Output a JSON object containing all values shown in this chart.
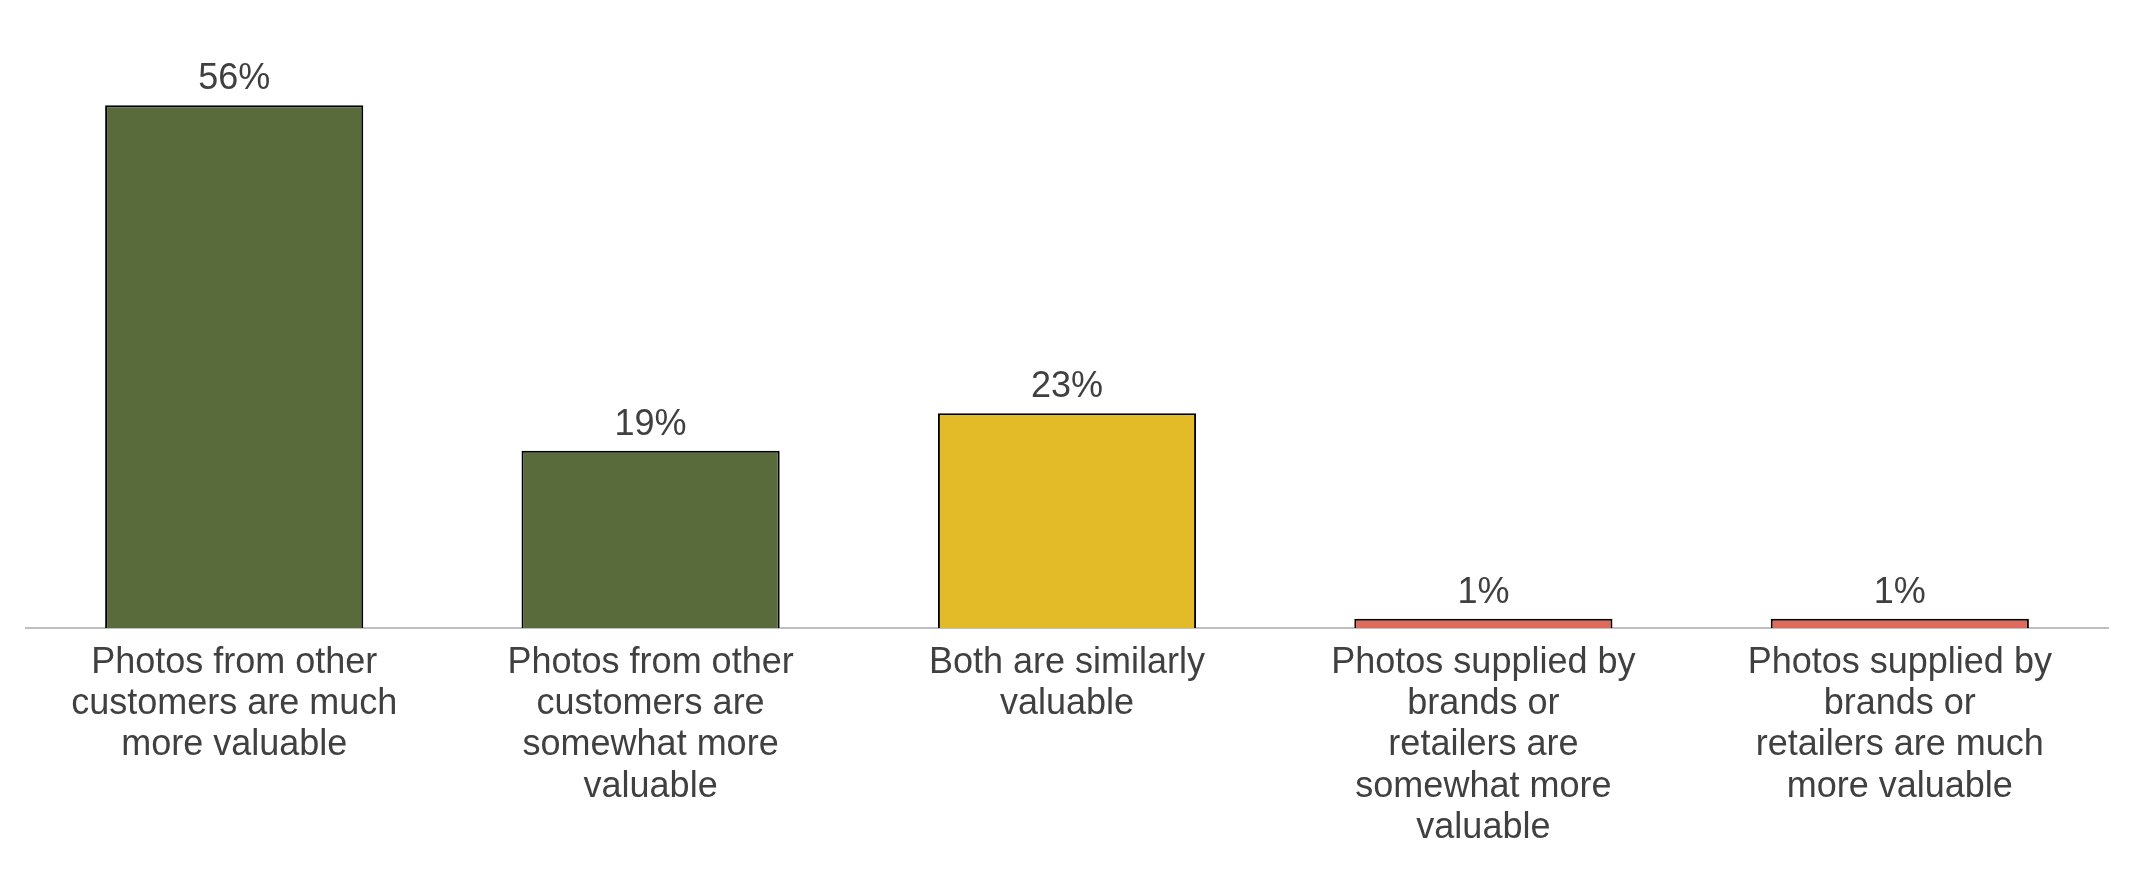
{
  "chart_data": {
    "type": "bar",
    "categories": [
      "Photos from other customers are much more valuable",
      "Photos from other customers are somewhat more valuable",
      "Both are similarly valuable",
      "Photos supplied by brands or retailers are somewhat more valuable",
      "Photos supplied by brands or retailers are much more valuable"
    ],
    "values": [
      56,
      19,
      23,
      1,
      1
    ],
    "colors": [
      "#5a6b3b",
      "#5a6b3b",
      "#e3bb28",
      "#e06b5c",
      "#e06b5c"
    ],
    "value_labels": [
      "56%",
      "19%",
      "23%",
      "1%",
      "1%"
    ],
    "tick_labels": "x",
    "grid": false,
    "legend": false
  }
}
